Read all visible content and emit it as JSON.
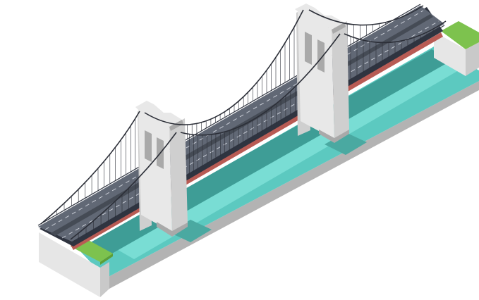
{
  "illustration": {
    "subject": "suspension-bridge",
    "style": "isometric",
    "tower_count": 2,
    "lane_count": 2
  },
  "palette": {
    "background": "#ffffff",
    "water_light": "#79ddd4",
    "water_mid": "#5cc9c0",
    "water_deep": "#3e9d96",
    "water_shadow": "#4aa9a1",
    "grass": "#7dc24e",
    "grass_edge": "#5e9e36",
    "earth_front": "#e6e6e6",
    "earth_side": "#c9c9c9",
    "earth_dark": "#b3b3b3",
    "stone_light": "#e8e8e8",
    "stone_mid": "#cfcfcf",
    "stone_dark": "#a9a9a9",
    "road": "#616875",
    "road_dark": "#454b55",
    "lane_mark": "#c9cdd6",
    "deck_edge": "#2f3440",
    "girder_red": "#b85b54",
    "cable": "#2c2f38"
  }
}
